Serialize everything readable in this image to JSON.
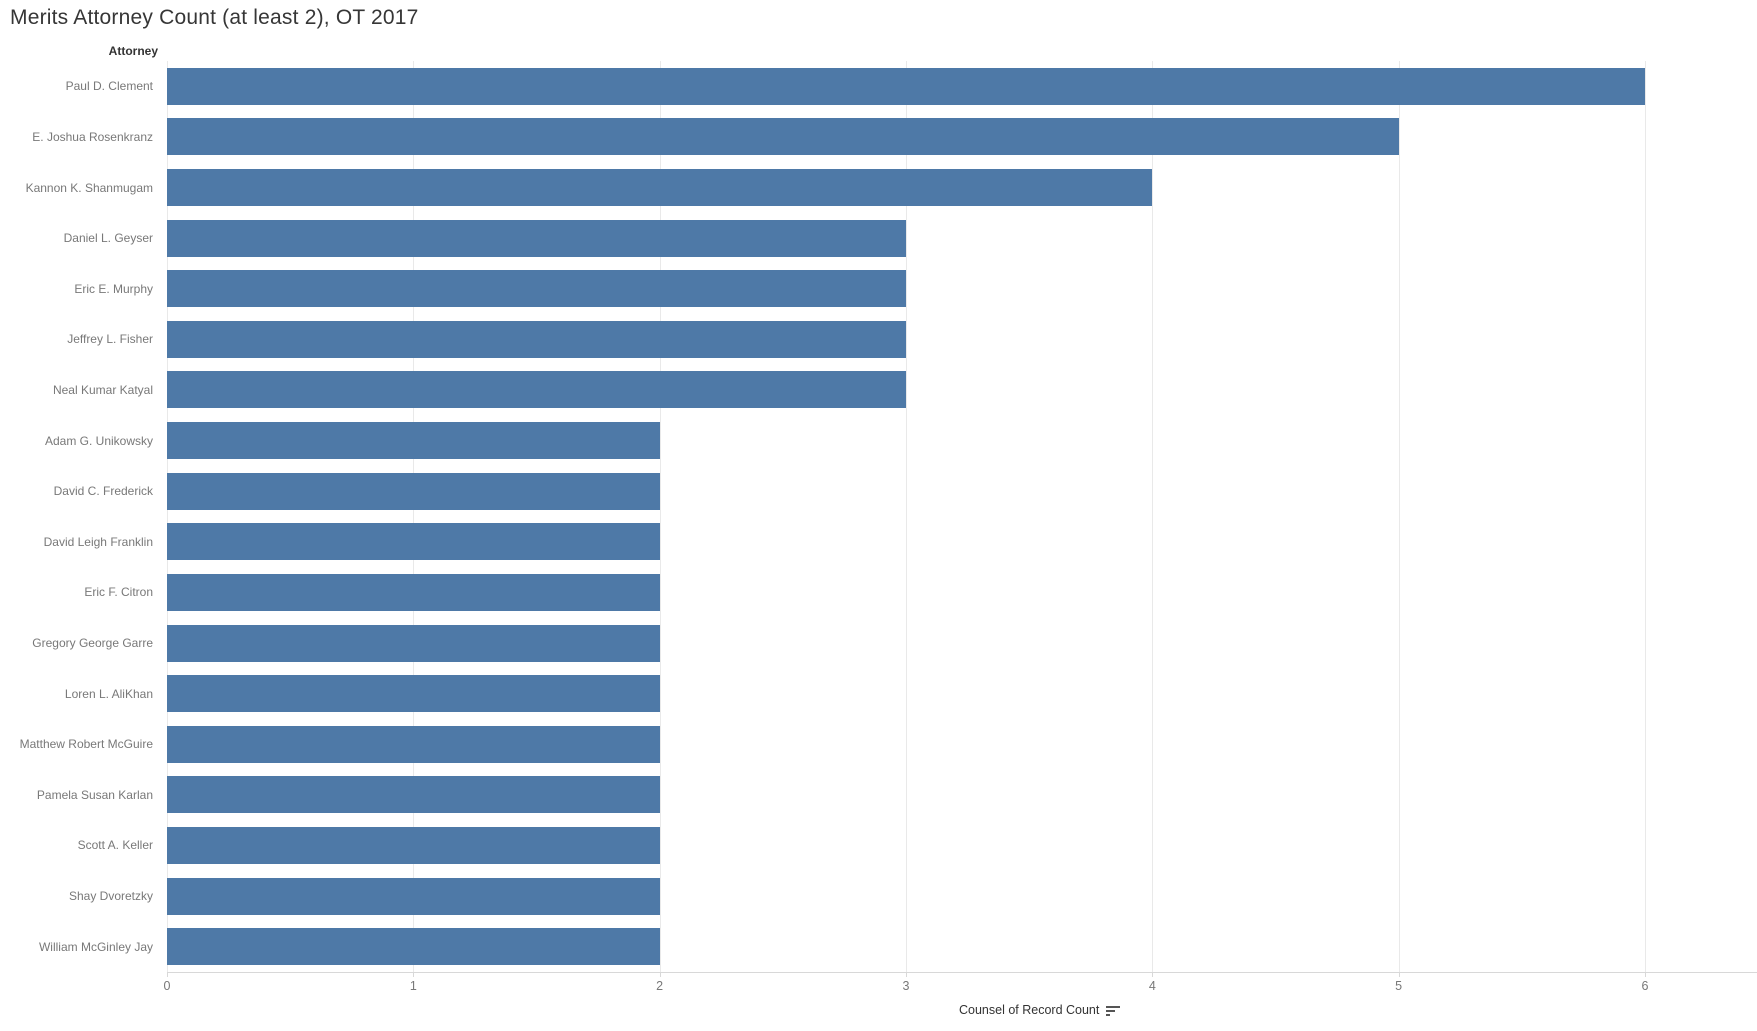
{
  "chart_data": {
    "type": "bar",
    "orientation": "horizontal",
    "title": "Merits Attorney Count (at least 2), OT 2017",
    "row_header": "Attorney",
    "xlabel": "Counsel of Record Count",
    "categories": [
      "Paul D. Clement",
      "E. Joshua Rosenkranz",
      "Kannon K. Shanmugam",
      "Daniel L. Geyser",
      "Eric E. Murphy",
      "Jeffrey L. Fisher",
      "Neal Kumar Katyal",
      "Adam G. Unikowsky",
      "David C. Frederick",
      "David Leigh Franklin",
      "Eric F. Citron",
      "Gregory George Garre",
      "Loren L. AliKhan",
      "Matthew Robert McGuire",
      "Pamela Susan Karlan",
      "Scott A. Keller",
      "Shay Dvoretzky",
      "William McGinley Jay"
    ],
    "values": [
      6,
      5,
      4,
      3,
      3,
      3,
      3,
      2,
      2,
      2,
      2,
      2,
      2,
      2,
      2,
      2,
      2,
      2
    ],
    "xlim": [
      0,
      6
    ],
    "x_ticks": [
      "0",
      "1",
      "2",
      "3",
      "4",
      "5",
      "6"
    ],
    "grid": true,
    "legend": "none",
    "sort_indicator": "descending",
    "bar_color": "#4e79a7"
  },
  "colors": {
    "bar": "#4e79a7",
    "gridline": "#e9e9e9",
    "axis_line": "#d8d8d8",
    "title_text": "#363636",
    "header_text": "#333333",
    "label_text": "#787878",
    "background": "#ffffff"
  }
}
